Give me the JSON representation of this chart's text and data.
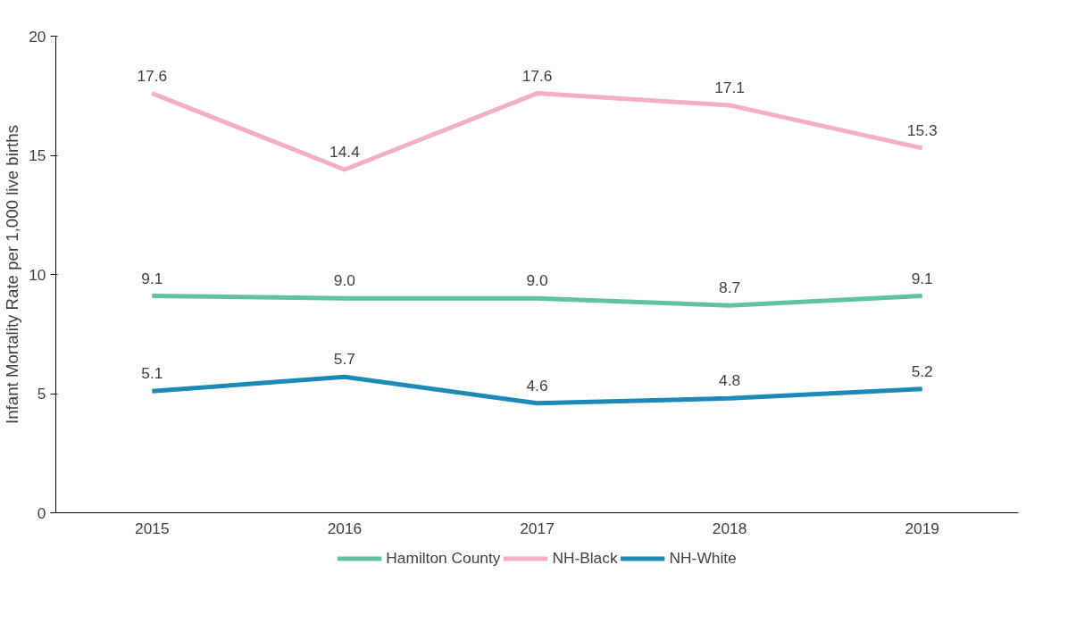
{
  "chart_data": {
    "type": "line",
    "ylabel": "Infant Mortality Rate per 1,000 live births",
    "categories": [
      "2015",
      "2016",
      "2017",
      "2018",
      "2019"
    ],
    "series": [
      {
        "name": "Hamilton County",
        "color": "#5fc3a0",
        "values": [
          9.1,
          9.0,
          9.0,
          8.7,
          9.1
        ],
        "value_labels": [
          "9.1",
          "9.0",
          "9.0",
          "8.7",
          "9.1"
        ]
      },
      {
        "name": "NH-Black",
        "color": "#f4aec8",
        "values": [
          17.6,
          14.4,
          17.6,
          17.1,
          15.3
        ],
        "value_labels": [
          "17.6",
          "14.4",
          "17.6",
          "17.1",
          "15.3"
        ]
      },
      {
        "name": "NH-White",
        "color": "#1b8ab8",
        "values": [
          5.1,
          5.7,
          4.6,
          4.8,
          5.2
        ],
        "value_labels": [
          "5.1",
          "5.7",
          "4.6",
          "4.8",
          "5.2"
        ]
      }
    ],
    "ylim": [
      0,
      20
    ],
    "yticks": [
      0,
      5,
      10,
      15,
      20
    ],
    "grid": false,
    "legend": "bottom",
    "marker": "none",
    "line_style": "solid"
  }
}
